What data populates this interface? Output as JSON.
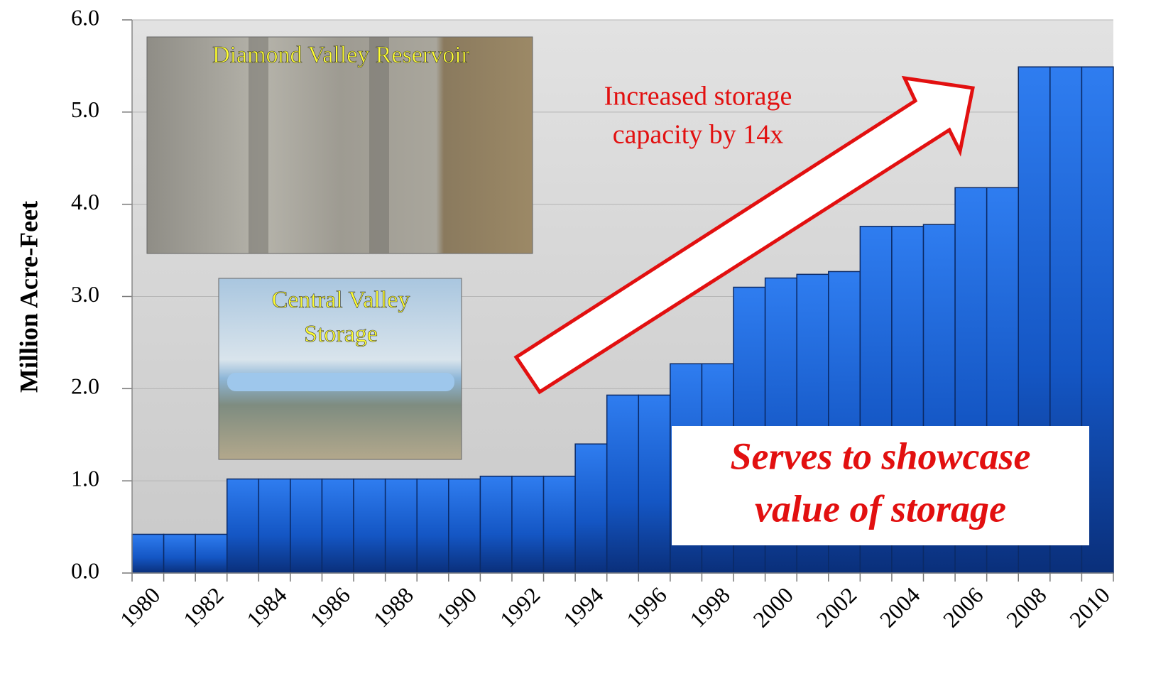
{
  "chart_data": {
    "type": "bar",
    "y_label": "Million Acre-Feet",
    "categories": [
      "1980",
      null,
      "1982",
      null,
      "1984",
      null,
      "1986",
      null,
      "1988",
      null,
      "1990",
      null,
      "1992",
      null,
      "1994",
      null,
      "1996",
      null,
      "1998",
      null,
      "2000",
      null,
      "2002",
      null,
      "2004",
      null,
      "2006",
      null,
      "2008",
      null,
      "2010"
    ],
    "values": [
      0.42,
      0.42,
      0.42,
      1.02,
      1.02,
      1.02,
      1.02,
      1.02,
      1.02,
      1.02,
      1.02,
      1.05,
      1.05,
      1.05,
      1.4,
      1.93,
      1.93,
      2.27,
      2.27,
      3.1,
      3.2,
      3.24,
      3.27,
      3.76,
      3.76,
      3.78,
      4.18,
      4.18,
      5.49,
      5.49,
      5.49
    ],
    "color": "#1a5fd0",
    "ylim": [
      0,
      6
    ],
    "yticks": [
      {
        "value": 0,
        "label": "0.0"
      },
      {
        "value": 1,
        "label": "1.0"
      },
      {
        "value": 2,
        "label": "2.0"
      },
      {
        "value": 3,
        "label": "3.0"
      },
      {
        "value": 4,
        "label": "4.0"
      },
      {
        "value": 5,
        "label": "5.0"
      },
      {
        "value": 6,
        "label": "6.0"
      }
    ],
    "grid": true,
    "annotations": [
      {
        "lines": [
          "Diamond Valley Reservoir"
        ]
      },
      {
        "lines": [
          "Central Valley",
          "Storage"
        ]
      },
      {
        "lines": [
          "Increased storage",
          "capacity by 14x"
        ]
      },
      {
        "lines": [
          "Serves to showcase",
          "value of storage"
        ]
      }
    ]
  }
}
